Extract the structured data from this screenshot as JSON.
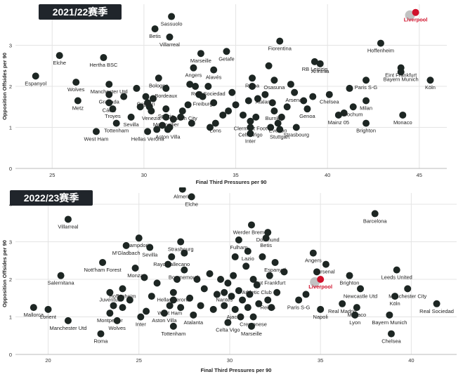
{
  "colors": {
    "point": "#1d2623",
    "highlight": "#d0112b",
    "grid": "#e4e4e4",
    "title_bg": "#20252b"
  },
  "chart_data": [
    {
      "type": "scatter",
      "title": "2021/22赛季",
      "xlabel": "Final Third Pressures per 90",
      "ylabel": "Opposition Offsides per 90",
      "xlim": [
        23,
        46.5
      ],
      "ylim": [
        0,
        4
      ],
      "xticks": [
        25,
        30,
        35,
        40,
        45
      ],
      "yticks": [
        0,
        1,
        2,
        3
      ],
      "grid": true,
      "highlight": "Liverpool",
      "points": [
        {
          "name": "Liverpool",
          "x": 44.8,
          "y": 3.8
        },
        {
          "name": "Sassuolo",
          "x": 31.5,
          "y": 3.7
        },
        {
          "name": "Betis",
          "x": 30.6,
          "y": 3.4
        },
        {
          "name": "Villarreal",
          "x": 31.4,
          "y": 3.2
        },
        {
          "name": "Fiorentina",
          "x": 37.4,
          "y": 3.1
        },
        {
          "name": "Hoffenheim",
          "x": 42.9,
          "y": 3.05
        },
        {
          "name": "Elche",
          "x": 25.4,
          "y": 2.75
        },
        {
          "name": "Hertha BSC",
          "x": 27.8,
          "y": 2.7
        },
        {
          "name": "Marseille",
          "x": 33.1,
          "y": 2.8
        },
        {
          "name": "Getafe",
          "x": 34.5,
          "y": 2.85
        },
        {
          "name": "RB Leipzig",
          "x": 39.3,
          "y": 2.6
        },
        {
          "name": "Arminia",
          "x": 39.6,
          "y": 2.55
        },
        {
          "name": "Eint Frankfurt",
          "x": 44.0,
          "y": 2.45
        },
        {
          "name": "Bayern Munich",
          "x": 44.0,
          "y": 2.35
        },
        {
          "name": "Espanyol",
          "x": 24.1,
          "y": 2.25
        },
        {
          "name": "Wolves",
          "x": 26.3,
          "y": 2.1
        },
        {
          "name": "Bologna",
          "x": 30.8,
          "y": 2.2
        },
        {
          "name": "Angers",
          "x": 32.7,
          "y": 2.45
        },
        {
          "name": "Alavés",
          "x": 33.8,
          "y": 2.4
        },
        {
          "name": "Roma",
          "x": 35.9,
          "y": 2.2
        },
        {
          "name": "Osasuna",
          "x": 37.1,
          "y": 2.15
        },
        {
          "name": "Real Sociedad",
          "x": 33.5,
          "y": 2.0
        },
        {
          "name": "Paris S-G",
          "x": 42.1,
          "y": 2.15
        },
        {
          "name": "Köln",
          "x": 45.6,
          "y": 2.15
        },
        {
          "name": "Manchester Utd",
          "x": 28.1,
          "y": 2.05
        },
        {
          "name": "Granada",
          "x": 28.1,
          "y": 1.8
        },
        {
          "name": "Cádiz",
          "x": 28.1,
          "y": 1.6
        },
        {
          "name": "Metz",
          "x": 26.4,
          "y": 1.65
        },
        {
          "name": "Bordeaux",
          "x": 31.2,
          "y": 1.95
        },
        {
          "name": "Cagliari",
          "x": 30.1,
          "y": 1.75
        },
        {
          "name": "Freiburg",
          "x": 33.2,
          "y": 1.75
        },
        {
          "name": "Atalanta",
          "x": 36.6,
          "y": 1.8
        },
        {
          "name": "Arsenal",
          "x": 38.2,
          "y": 1.85
        },
        {
          "name": "Chelsea",
          "x": 40.1,
          "y": 1.8
        },
        {
          "name": "Milan",
          "x": 42.1,
          "y": 1.65
        },
        {
          "name": "Troyes",
          "x": 28.3,
          "y": 1.45
        },
        {
          "name": "Spezia",
          "x": 31.2,
          "y": 1.45
        },
        {
          "name": "Venezia",
          "x": 30.4,
          "y": 1.4
        },
        {
          "name": "Norwich City",
          "x": 32.1,
          "y": 1.4
        },
        {
          "name": "Genoa",
          "x": 38.9,
          "y": 1.45
        },
        {
          "name": "Bochum",
          "x": 41.4,
          "y": 1.5
        },
        {
          "name": "Sevilla",
          "x": 29.3,
          "y": 1.25
        },
        {
          "name": "Montpellier",
          "x": 31.2,
          "y": 1.25
        },
        {
          "name": "Burnley",
          "x": 37.1,
          "y": 1.4
        },
        {
          "name": "Tottenham",
          "x": 28.5,
          "y": 1.1
        },
        {
          "name": "Lens",
          "x": 33.9,
          "y": 1.1
        },
        {
          "name": "Clermont Foot",
          "x": 35.8,
          "y": 1.15
        },
        {
          "name": "Celta Vigo",
          "x": 35.8,
          "y": 1.0
        },
        {
          "name": "Everton",
          "x": 37.3,
          "y": 1.1
        },
        {
          "name": "Strasbourg",
          "x": 38.3,
          "y": 1.0
        },
        {
          "name": "Mainz 05",
          "x": 40.6,
          "y": 1.3
        },
        {
          "name": "Monaco",
          "x": 44.1,
          "y": 1.3
        },
        {
          "name": "West Ham",
          "x": 27.4,
          "y": 0.9
        },
        {
          "name": "Hellas Verona",
          "x": 30.2,
          "y": 0.9
        },
        {
          "name": "Aston Villa",
          "x": 31.3,
          "y": 0.95
        },
        {
          "name": "Brighton",
          "x": 42.1,
          "y": 1.1
        },
        {
          "name": "Inter",
          "x": 35.8,
          "y": 0.85
        },
        {
          "name": "Stuttgart",
          "x": 37.4,
          "y": 0.95
        },
        {
          "name": "",
          "x": 28.9,
          "y": 1.75
        },
        {
          "name": "",
          "x": 29.6,
          "y": 1.95
        },
        {
          "name": "",
          "x": 29.8,
          "y": 1.5
        },
        {
          "name": "",
          "x": 30.2,
          "y": 1.6
        },
        {
          "name": "",
          "x": 30.3,
          "y": 1.5
        },
        {
          "name": "",
          "x": 30.5,
          "y": 1.7
        },
        {
          "name": "",
          "x": 30.7,
          "y": 0.95
        },
        {
          "name": "",
          "x": 31.0,
          "y": 1.05
        },
        {
          "name": "",
          "x": 31.4,
          "y": 1.0
        },
        {
          "name": "",
          "x": 31.6,
          "y": 1.2
        },
        {
          "name": "",
          "x": 32.0,
          "y": 1.25
        },
        {
          "name": "",
          "x": 32.4,
          "y": 1.55
        },
        {
          "name": "",
          "x": 32.5,
          "y": 2.05
        },
        {
          "name": "",
          "x": 32.6,
          "y": 1.1
        },
        {
          "name": "",
          "x": 32.8,
          "y": 2.0
        },
        {
          "name": "",
          "x": 33.0,
          "y": 1.8
        },
        {
          "name": "",
          "x": 33.6,
          "y": 1.0
        },
        {
          "name": "",
          "x": 33.8,
          "y": 1.6
        },
        {
          "name": "",
          "x": 34.3,
          "y": 1.3
        },
        {
          "name": "",
          "x": 34.6,
          "y": 1.4
        },
        {
          "name": "",
          "x": 34.8,
          "y": 1.85
        },
        {
          "name": "",
          "x": 35.0,
          "y": 1.55
        },
        {
          "name": "",
          "x": 35.4,
          "y": 1.3
        },
        {
          "name": "",
          "x": 35.7,
          "y": 1.65
        },
        {
          "name": "",
          "x": 35.9,
          "y": 2.0
        },
        {
          "name": "",
          "x": 36.1,
          "y": 1.25
        },
        {
          "name": "",
          "x": 36.2,
          "y": 1.7
        },
        {
          "name": "",
          "x": 36.8,
          "y": 2.5
        },
        {
          "name": "",
          "x": 36.9,
          "y": 1.0
        },
        {
          "name": "",
          "x": 37.0,
          "y": 1.6
        },
        {
          "name": "",
          "x": 37.5,
          "y": 1.25
        },
        {
          "name": "",
          "x": 37.8,
          "y": 1.5
        },
        {
          "name": "",
          "x": 38.0,
          "y": 2.05
        },
        {
          "name": "",
          "x": 38.7,
          "y": 1.65
        },
        {
          "name": "",
          "x": 39.2,
          "y": 1.75
        },
        {
          "name": "",
          "x": 40.9,
          "y": 1.35
        },
        {
          "name": "",
          "x": 41.2,
          "y": 1.95
        }
      ]
    },
    {
      "type": "scatter",
      "title": "2022/23赛季",
      "xlabel": "Final Third Pressures per 90",
      "ylabel": "Opposition Offsides per 90",
      "xlim": [
        18.2,
        42.5
      ],
      "ylim": [
        0,
        4.3
      ],
      "xticks": [
        20,
        25,
        30,
        35,
        40
      ],
      "yticks": [
        0,
        1,
        2,
        3,
        4
      ],
      "grid": true,
      "highlight": "Liverpool",
      "points": [
        {
          "name": "Almeria",
          "x": 27.4,
          "y": 4.4
        },
        {
          "name": "Elche",
          "x": 27.9,
          "y": 4.2
        },
        {
          "name": "Barcelona",
          "x": 38.0,
          "y": 3.75
        },
        {
          "name": "Villarreal",
          "x": 21.1,
          "y": 3.6
        },
        {
          "name": "Werder Bremen",
          "x": 31.2,
          "y": 3.45
        },
        {
          "name": "Dortmund",
          "x": 32.1,
          "y": 3.25
        },
        {
          "name": "Betis",
          "x": 32.0,
          "y": 3.1
        },
        {
          "name": "Sampdoria",
          "x": 25.0,
          "y": 3.1
        },
        {
          "name": "Strasbourg",
          "x": 27.3,
          "y": 3.0
        },
        {
          "name": "Fulham",
          "x": 30.5,
          "y": 3.05
        },
        {
          "name": "M'Gladbach",
          "x": 24.3,
          "y": 2.9
        },
        {
          "name": "Sevilla",
          "x": 25.6,
          "y": 2.85
        },
        {
          "name": "Rayo Vallecano",
          "x": 26.8,
          "y": 2.6
        },
        {
          "name": "Lazio",
          "x": 31.0,
          "y": 2.75
        },
        {
          "name": "Angers",
          "x": 34.6,
          "y": 2.7
        },
        {
          "name": "Espanyol",
          "x": 32.5,
          "y": 2.45
        },
        {
          "name": "Arsenal",
          "x": 35.3,
          "y": 2.4
        },
        {
          "name": "Nott'ham Forest",
          "x": 23.0,
          "y": 2.45
        },
        {
          "name": "Bournemouth",
          "x": 27.5,
          "y": 2.25
        },
        {
          "name": "Brighton",
          "x": 36.6,
          "y": 2.1
        },
        {
          "name": "Leeds United",
          "x": 39.2,
          "y": 2.25
        },
        {
          "name": "Salernitana",
          "x": 20.7,
          "y": 2.1
        },
        {
          "name": "Monza",
          "x": 24.8,
          "y": 2.3
        },
        {
          "name": "Eint Frankfurt",
          "x": 32.2,
          "y": 2.1
        },
        {
          "name": "Liverpool",
          "x": 35.0,
          "y": 2.0
        },
        {
          "name": "Athletic Club",
          "x": 31.5,
          "y": 1.85
        },
        {
          "name": "Newcastle Utd",
          "x": 37.2,
          "y": 1.75
        },
        {
          "name": "Manchester City",
          "x": 39.8,
          "y": 1.75
        },
        {
          "name": "Hoffenheim",
          "x": 24.1,
          "y": 1.75
        },
        {
          "name": "Juventus",
          "x": 23.4,
          "y": 1.65
        },
        {
          "name": "Hellas Verona",
          "x": 26.9,
          "y": 1.65
        },
        {
          "name": "Nantes",
          "x": 29.7,
          "y": 1.65
        },
        {
          "name": "Köln",
          "x": 39.1,
          "y": 1.55
        },
        {
          "name": "Reims",
          "x": 32.1,
          "y": 1.45
        },
        {
          "name": "Real Madrid",
          "x": 36.2,
          "y": 1.35
        },
        {
          "name": "Monaco",
          "x": 37.0,
          "y": 1.25
        },
        {
          "name": "Mallorca",
          "x": 19.2,
          "y": 1.25
        },
        {
          "name": "Lorient",
          "x": 20.0,
          "y": 1.2
        },
        {
          "name": "West Ham",
          "x": 26.7,
          "y": 1.3
        },
        {
          "name": "Paris S-G",
          "x": 33.8,
          "y": 1.45
        },
        {
          "name": "Real Sociedad",
          "x": 41.4,
          "y": 1.35
        },
        {
          "name": "Ajaccio",
          "x": 30.3,
          "y": 1.2
        },
        {
          "name": "Napoli",
          "x": 35.0,
          "y": 1.2
        },
        {
          "name": "Aston Villa",
          "x": 26.4,
          "y": 1.1
        },
        {
          "name": "Montpellier",
          "x": 23.4,
          "y": 1.1
        },
        {
          "name": "Inter",
          "x": 25.1,
          "y": 1.0
        },
        {
          "name": "Atalanta",
          "x": 28.0,
          "y": 1.05
        },
        {
          "name": "Cremonese",
          "x": 31.3,
          "y": 1.0
        },
        {
          "name": "Lyon",
          "x": 36.9,
          "y": 1.05
        },
        {
          "name": "Bayern Munich",
          "x": 38.8,
          "y": 1.05
        },
        {
          "name": "Manchester Utd",
          "x": 21.1,
          "y": 0.9
        },
        {
          "name": "Wolves",
          "x": 23.8,
          "y": 0.9
        },
        {
          "name": "Tottenham",
          "x": 26.9,
          "y": 0.75
        },
        {
          "name": "Celta Vigo",
          "x": 29.9,
          "y": 0.85
        },
        {
          "name": "Marseille",
          "x": 31.2,
          "y": 0.75
        },
        {
          "name": "Roma",
          "x": 22.9,
          "y": 0.55
        },
        {
          "name": "Chelsea",
          "x": 38.9,
          "y": 0.55
        },
        {
          "name": "",
          "x": 23.6,
          "y": 1.3
        },
        {
          "name": "",
          "x": 24.0,
          "y": 1.5
        },
        {
          "name": "",
          "x": 24.1,
          "y": 1.25
        },
        {
          "name": "",
          "x": 24.5,
          "y": 1.45
        },
        {
          "name": "",
          "x": 25.3,
          "y": 2.05
        },
        {
          "name": "",
          "x": 25.4,
          "y": 1.15
        },
        {
          "name": "",
          "x": 25.7,
          "y": 1.55
        },
        {
          "name": "",
          "x": 26.0,
          "y": 1.9
        },
        {
          "name": "",
          "x": 26.6,
          "y": 2.4
        },
        {
          "name": "",
          "x": 26.9,
          "y": 1.45
        },
        {
          "name": "",
          "x": 27.1,
          "y": 2.0
        },
        {
          "name": "",
          "x": 27.3,
          "y": 1.25
        },
        {
          "name": "",
          "x": 27.5,
          "y": 2.7
        },
        {
          "name": "",
          "x": 27.8,
          "y": 1.5
        },
        {
          "name": "",
          "x": 28.2,
          "y": 2.0
        },
        {
          "name": "",
          "x": 28.4,
          "y": 1.3
        },
        {
          "name": "",
          "x": 28.6,
          "y": 1.75
        },
        {
          "name": "",
          "x": 28.9,
          "y": 2.15
        },
        {
          "name": "",
          "x": 29.1,
          "y": 1.2
        },
        {
          "name": "",
          "x": 29.3,
          "y": 1.6
        },
        {
          "name": "",
          "x": 29.5,
          "y": 2.0
        },
        {
          "name": "",
          "x": 29.7,
          "y": 1.3
        },
        {
          "name": "",
          "x": 29.9,
          "y": 1.9
        },
        {
          "name": "",
          "x": 30.1,
          "y": 1.55
        },
        {
          "name": "",
          "x": 30.2,
          "y": 2.1
        },
        {
          "name": "",
          "x": 30.3,
          "y": 2.6
        },
        {
          "name": "",
          "x": 30.5,
          "y": 1.7
        },
        {
          "name": "",
          "x": 30.6,
          "y": 1.0
        },
        {
          "name": "",
          "x": 30.7,
          "y": 1.45
        },
        {
          "name": "",
          "x": 30.9,
          "y": 2.35
        },
        {
          "name": "",
          "x": 31.0,
          "y": 1.25
        },
        {
          "name": "",
          "x": 31.1,
          "y": 1.6
        },
        {
          "name": "",
          "x": 31.3,
          "y": 2.0
        },
        {
          "name": "",
          "x": 31.6,
          "y": 1.35
        },
        {
          "name": "",
          "x": 31.8,
          "y": 2.6
        },
        {
          "name": "",
          "x": 32.3,
          "y": 1.25
        },
        {
          "name": "",
          "x": 32.6,
          "y": 1.65
        },
        {
          "name": "",
          "x": 33.0,
          "y": 2.2
        },
        {
          "name": "",
          "x": 34.2,
          "y": 1.6
        },
        {
          "name": "",
          "x": 34.8,
          "y": 2.2
        }
      ]
    }
  ]
}
